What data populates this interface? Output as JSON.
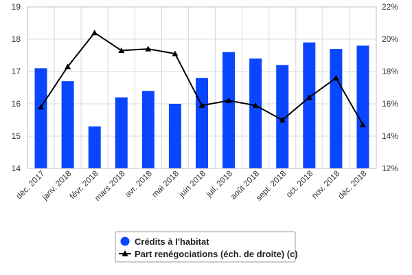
{
  "chart_data": {
    "type": "bar",
    "categories": [
      "déc. 2017",
      "janv. 2018",
      "févr. 2018",
      "mars 2018",
      "avr. 2018",
      "mai 2018",
      "juin 2018",
      "juil. 2018",
      "août 2018",
      "sept. 2018",
      "oct. 2018",
      "nov. 2018",
      "déc. 2018"
    ],
    "title": "",
    "xlabel": "",
    "ylabel": "",
    "ylim": [
      14,
      19
    ],
    "y_ticks": [
      "14",
      "15",
      "16",
      "17",
      "18",
      "19"
    ],
    "y2lim": [
      12,
      22
    ],
    "y2_ticks": [
      "12%",
      "14%",
      "16%",
      "18%",
      "20%",
      "22%"
    ],
    "grid": true,
    "legend_position": "bottom",
    "series": [
      {
        "name": "Crédits à l'habitat",
        "type": "bar",
        "axis": "left",
        "color": "#0a46ff",
        "values": [
          17.1,
          16.7,
          15.3,
          16.2,
          16.4,
          16.0,
          16.8,
          17.6,
          17.4,
          17.2,
          17.9,
          17.7,
          17.8
        ]
      },
      {
        "name": "Part renégociations (éch. de droite) (c)",
        "type": "line",
        "axis": "right",
        "color": "#000000",
        "marker": "triangle",
        "values": [
          15.8,
          18.3,
          20.4,
          19.3,
          19.4,
          19.1,
          15.9,
          16.2,
          15.9,
          15.0,
          16.4,
          17.6,
          14.7
        ]
      }
    ]
  }
}
